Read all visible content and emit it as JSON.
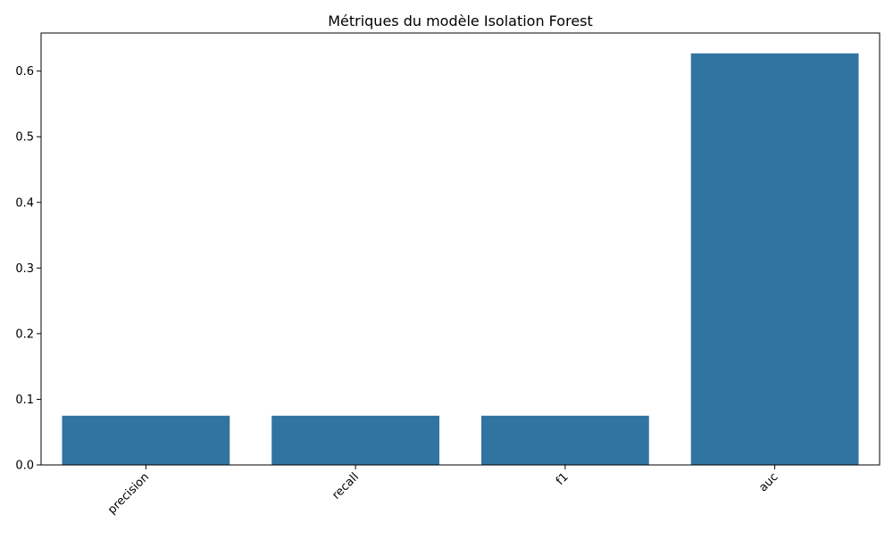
{
  "chart_data": {
    "type": "bar",
    "title": "Métriques du modèle Isolation Forest",
    "xlabel": "",
    "ylabel": "",
    "categories": [
      "precision",
      "recall",
      "f1",
      "auc"
    ],
    "values": [
      0.075,
      0.075,
      0.075,
      0.627
    ],
    "ylim": [
      0,
      0.658
    ],
    "yticks": [
      0.0,
      0.1,
      0.2,
      0.3,
      0.4,
      0.5,
      0.6
    ],
    "ytick_labels": [
      "0.0",
      "0.1",
      "0.2",
      "0.3",
      "0.4",
      "0.5",
      "0.6"
    ],
    "xtick_rotation_deg": 45,
    "bar_color": "#3274a1",
    "grid": false,
    "legend": "none"
  }
}
